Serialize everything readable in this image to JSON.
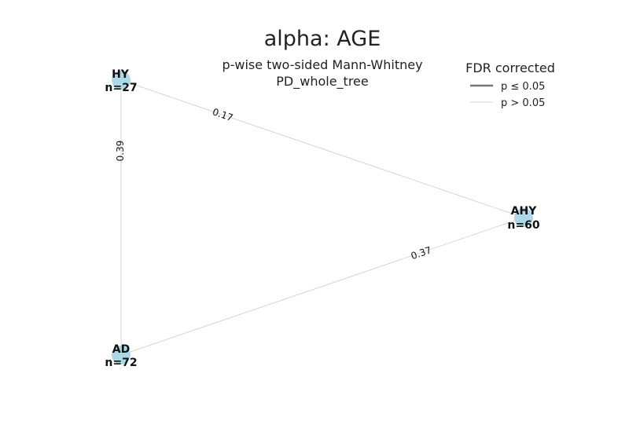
{
  "title": "alpha: AGE",
  "subtitle": {
    "line1": "p-wise two-sided Mann-Whitney",
    "line2": "PD_whole_tree"
  },
  "legend": {
    "title": "FDR corrected",
    "entries": [
      {
        "label": "p ≤ 0.05",
        "color": "#777777"
      },
      {
        "label": "p > 0.05",
        "color": "#dddddd"
      }
    ]
  },
  "nodes": [
    {
      "id": "HY",
      "name": "HY",
      "count": "n=27",
      "color": "#add8e6"
    },
    {
      "id": "AHY",
      "name": "AHY",
      "count": "n=60",
      "color": "#add8e6"
    },
    {
      "id": "AD",
      "name": "AD",
      "count": "n=72",
      "color": "#add8e6"
    }
  ],
  "edges": [
    {
      "from": "HY",
      "to": "AHY",
      "p": "0.17",
      "significant": false
    },
    {
      "from": "HY",
      "to": "AD",
      "p": "0.39",
      "significant": false
    },
    {
      "from": "AD",
      "to": "AHY",
      "p": "0.37",
      "significant": false
    }
  ]
}
